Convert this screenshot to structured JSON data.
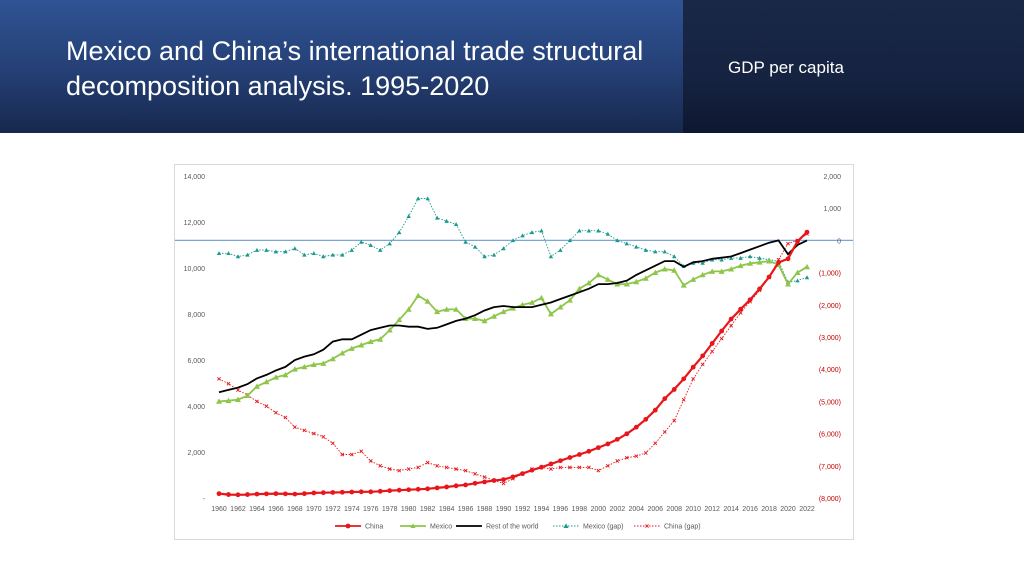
{
  "slide": {
    "title": "Mexico and China’s international trade structural decomposition analysis. 1995-2020",
    "subtitle": "GDP per capita"
  },
  "chart_data": {
    "type": "line",
    "x": [
      1960,
      1961,
      1962,
      1963,
      1964,
      1965,
      1966,
      1967,
      1968,
      1969,
      1970,
      1971,
      1972,
      1973,
      1974,
      1975,
      1976,
      1977,
      1978,
      1979,
      1980,
      1981,
      1982,
      1983,
      1984,
      1985,
      1986,
      1987,
      1988,
      1989,
      1990,
      1991,
      1992,
      1993,
      1994,
      1995,
      1996,
      1997,
      1998,
      1999,
      2000,
      2001,
      2002,
      2003,
      2004,
      2005,
      2006,
      2007,
      2008,
      2009,
      2010,
      2011,
      2012,
      2013,
      2014,
      2015,
      2016,
      2017,
      2018,
      2019,
      2020,
      2021,
      2022
    ],
    "x_tick_labels": [
      "1960",
      "1962",
      "1964",
      "1966",
      "1968",
      "1970",
      "1972",
      "1974",
      "1976",
      "1978",
      "1980",
      "1982",
      "1984",
      "1986",
      "1988",
      "1990",
      "1992",
      "1994",
      "1996",
      "1998",
      "2000",
      "2002",
      "2004",
      "2006",
      "2008",
      "2010",
      "2012",
      "2014",
      "2016",
      "2018",
      "2020",
      "2022"
    ],
    "left_axis": {
      "ylim": [
        0,
        14000
      ],
      "tick_labels": [
        "-",
        "2,000",
        "4,000",
        "6,000",
        "8,000",
        "10,000",
        "12,000",
        "14,000"
      ]
    },
    "right_axis": {
      "ylim": [
        -8000,
        2000
      ],
      "tick_labels": [
        "(8,000)",
        "(7,000)",
        "(6,000)",
        "(5,000)",
        "(4,000)",
        "(3,000)",
        "(2,000)",
        "(1,000)",
        "0",
        "1,000",
        "2,000"
      ]
    },
    "grid": false,
    "legend_position": "bottom",
    "series": [
      {
        "name": "China",
        "axis": "left",
        "color": "#e8161b",
        "style": "solid-marker-circle",
        "values": [
          190,
          150,
          140,
          150,
          170,
          180,
          190,
          180,
          170,
          190,
          220,
          230,
          240,
          250,
          260,
          270,
          270,
          290,
          320,
          340,
          360,
          380,
          400,
          440,
          480,
          530,
          570,
          640,
          700,
          760,
          800,
          920,
          1060,
          1210,
          1340,
          1480,
          1620,
          1760,
          1890,
          2030,
          2190,
          2350,
          2550,
          2790,
          3080,
          3420,
          3820,
          4320,
          4720,
          5180,
          5690,
          6180,
          6720,
          7260,
          7780,
          8210,
          8620,
          9090,
          9610,
          10240,
          10400,
          11160,
          11560
        ]
      },
      {
        "name": "Mexico",
        "axis": "left",
        "color": "#8dc64a",
        "style": "solid-marker-triangle",
        "values": [
          4200,
          4230,
          4280,
          4450,
          4850,
          5050,
          5250,
          5350,
          5600,
          5700,
          5800,
          5850,
          6050,
          6300,
          6500,
          6650,
          6800,
          6900,
          7300,
          7750,
          8200,
          8800,
          8550,
          8100,
          8200,
          8200,
          7800,
          7800,
          7700,
          7900,
          8100,
          8250,
          8400,
          8500,
          8700,
          8000,
          8300,
          8600,
          9100,
          9350,
          9700,
          9500,
          9300,
          9300,
          9400,
          9550,
          9800,
          9950,
          9900,
          9250,
          9500,
          9700,
          9850,
          9850,
          9950,
          10100,
          10200,
          10250,
          10300,
          10150,
          9300,
          9800,
          10050
        ]
      },
      {
        "name": "Rest of the world",
        "axis": "left",
        "color": "#000000",
        "style": "solid",
        "values": [
          4600,
          4700,
          4800,
          4950,
          5200,
          5350,
          5550,
          5700,
          6000,
          6150,
          6250,
          6450,
          6800,
          6900,
          6900,
          7100,
          7300,
          7400,
          7500,
          7500,
          7450,
          7450,
          7350,
          7400,
          7550,
          7700,
          7800,
          7950,
          8150,
          8300,
          8350,
          8300,
          8300,
          8300,
          8400,
          8500,
          8650,
          8800,
          8950,
          9100,
          9300,
          9300,
          9350,
          9450,
          9700,
          9900,
          10100,
          10300,
          10300,
          10050,
          10250,
          10300,
          10400,
          10450,
          10500,
          10650,
          10800,
          10950,
          11100,
          11200,
          10600,
          11000,
          11200
        ]
      },
      {
        "name": "Mexico (gap)",
        "axis": "right",
        "color": "#1a9a8e",
        "style": "dotted-marker-triangle",
        "values": [
          -400,
          -400,
          -500,
          -450,
          -300,
          -300,
          -350,
          -350,
          -250,
          -450,
          -400,
          -500,
          -450,
          -450,
          -300,
          -50,
          -150,
          -300,
          -100,
          250,
          750,
          1300,
          1300,
          700,
          600,
          500,
          -50,
          -200,
          -500,
          -450,
          -250,
          0,
          150,
          250,
          300,
          -500,
          -300,
          0,
          300,
          300,
          300,
          200,
          0,
          -100,
          -200,
          -300,
          -350,
          -350,
          -500,
          -800,
          -700,
          -700,
          -600,
          -600,
          -550,
          -550,
          -500,
          -550,
          -600,
          -650,
          -1300,
          -1250,
          -1150
        ]
      },
      {
        "name": "China (gap)",
        "axis": "right",
        "color": "#e8161b",
        "style": "dotted-marker-x",
        "values": [
          -4300,
          -4450,
          -4650,
          -4800,
          -5000,
          -5150,
          -5350,
          -5500,
          -5800,
          -5900,
          -6000,
          -6100,
          -6300,
          -6650,
          -6650,
          -6550,
          -6850,
          -7000,
          -7100,
          -7150,
          -7100,
          -7050,
          -6900,
          -7000,
          -7050,
          -7100,
          -7150,
          -7250,
          -7350,
          -7450,
          -7550,
          -7400,
          -7250,
          -7100,
          -7050,
          -7100,
          -7050,
          -7050,
          -7050,
          -7050,
          -7150,
          -7000,
          -6850,
          -6750,
          -6700,
          -6600,
          -6300,
          -5950,
          -5600,
          -4950,
          -4300,
          -3850,
          -3450,
          -3050,
          -2650,
          -2250,
          -1900,
          -1550,
          -1150,
          -600,
          -100,
          0,
          200
        ]
      }
    ]
  }
}
